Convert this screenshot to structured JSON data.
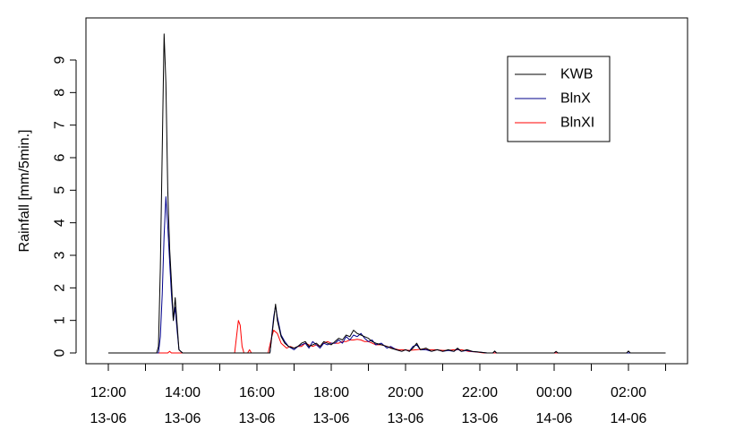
{
  "chart_data": {
    "type": "line",
    "title": "",
    "ylabel": "Rainfall [mm/5min.]",
    "xlabel": "",
    "ylim": [
      0,
      9.9
    ],
    "yticks": [
      0,
      1,
      2,
      3,
      4,
      5,
      6,
      7,
      8,
      9
    ],
    "xlim_hours": [
      11.5,
      27.0
    ],
    "xticks": [
      {
        "hour": 12,
        "time": "12:00",
        "date": "13-06"
      },
      {
        "hour": 14,
        "time": "14:00",
        "date": "13-06"
      },
      {
        "hour": 16,
        "time": "16:00",
        "date": "13-06"
      },
      {
        "hour": 18,
        "time": "18:00",
        "date": "13-06"
      },
      {
        "hour": 20,
        "time": "20:00",
        "date": "13-06"
      },
      {
        "hour": 22,
        "time": "22:00",
        "date": "13-06"
      },
      {
        "hour": 24,
        "time": "00:00",
        "date": "14-06"
      },
      {
        "hour": 26,
        "time": "02:00",
        "date": "14-06"
      }
    ],
    "minor_ticks_hours": [
      13,
      15,
      17,
      19,
      21,
      23,
      25,
      27
    ],
    "legend_position": "top-right",
    "series": [
      {
        "name": "KWB",
        "color": "#000000",
        "points": [
          [
            12.0,
            0
          ],
          [
            13.3,
            0
          ],
          [
            13.35,
            0.2
          ],
          [
            13.4,
            2.6
          ],
          [
            13.45,
            6.2
          ],
          [
            13.5,
            9.8
          ],
          [
            13.55,
            8.3
          ],
          [
            13.6,
            5.0
          ],
          [
            13.65,
            3.2
          ],
          [
            13.7,
            2.2
          ],
          [
            13.75,
            1.0
          ],
          [
            13.8,
            1.7
          ],
          [
            13.85,
            0.9
          ],
          [
            13.9,
            0.1
          ],
          [
            13.95,
            0.05
          ],
          [
            14.0,
            0
          ],
          [
            16.35,
            0
          ],
          [
            16.45,
            1.0
          ],
          [
            16.5,
            1.5
          ],
          [
            16.55,
            1.0
          ],
          [
            16.65,
            0.5
          ],
          [
            16.75,
            0.3
          ],
          [
            16.85,
            0.2
          ],
          [
            17.0,
            0.15
          ],
          [
            17.1,
            0.2
          ],
          [
            17.2,
            0.3
          ],
          [
            17.3,
            0.35
          ],
          [
            17.4,
            0.2
          ],
          [
            17.5,
            0.25
          ],
          [
            17.6,
            0.3
          ],
          [
            17.7,
            0.2
          ],
          [
            17.8,
            0.35
          ],
          [
            17.9,
            0.3
          ],
          [
            18.0,
            0.25
          ],
          [
            18.1,
            0.35
          ],
          [
            18.2,
            0.45
          ],
          [
            18.3,
            0.4
          ],
          [
            18.4,
            0.55
          ],
          [
            18.5,
            0.5
          ],
          [
            18.6,
            0.7
          ],
          [
            18.7,
            0.6
          ],
          [
            18.8,
            0.55
          ],
          [
            18.9,
            0.5
          ],
          [
            19.0,
            0.45
          ],
          [
            19.1,
            0.35
          ],
          [
            19.2,
            0.3
          ],
          [
            19.35,
            0.25
          ],
          [
            19.5,
            0.2
          ],
          [
            19.6,
            0.15
          ],
          [
            19.75,
            0.1
          ],
          [
            19.9,
            0.05
          ],
          [
            20.0,
            0.1
          ],
          [
            20.1,
            0.05
          ],
          [
            20.2,
            0.15
          ],
          [
            20.3,
            0.3
          ],
          [
            20.4,
            0.1
          ],
          [
            20.55,
            0.15
          ],
          [
            20.7,
            0.05
          ],
          [
            20.85,
            0.1
          ],
          [
            21.0,
            0.05
          ],
          [
            21.15,
            0.1
          ],
          [
            21.3,
            0.05
          ],
          [
            21.4,
            0.15
          ],
          [
            21.5,
            0.05
          ],
          [
            21.65,
            0.1
          ],
          [
            21.8,
            0.05
          ],
          [
            21.95,
            0.03
          ],
          [
            22.2,
            0
          ],
          [
            22.35,
            0
          ],
          [
            22.4,
            0.06
          ],
          [
            22.45,
            0
          ],
          [
            24.0,
            0
          ],
          [
            24.05,
            0.05
          ],
          [
            24.1,
            0
          ],
          [
            25.95,
            0
          ],
          [
            26.0,
            0.06
          ],
          [
            26.05,
            0
          ],
          [
            27.0,
            0
          ]
        ]
      },
      {
        "name": "BlnX",
        "color": "#00008b",
        "points": [
          [
            12.0,
            0
          ],
          [
            13.35,
            0
          ],
          [
            13.4,
            0.5
          ],
          [
            13.45,
            1.8
          ],
          [
            13.5,
            3.6
          ],
          [
            13.55,
            4.8
          ],
          [
            13.6,
            3.9
          ],
          [
            13.65,
            2.8
          ],
          [
            13.7,
            1.8
          ],
          [
            13.75,
            1.0
          ],
          [
            13.8,
            1.4
          ],
          [
            13.85,
            0.7
          ],
          [
            13.9,
            0.1
          ],
          [
            13.95,
            0.05
          ],
          [
            14.0,
            0
          ],
          [
            16.35,
            0
          ],
          [
            16.45,
            1.1
          ],
          [
            16.5,
            1.45
          ],
          [
            16.55,
            1.1
          ],
          [
            16.65,
            0.55
          ],
          [
            16.75,
            0.35
          ],
          [
            16.85,
            0.2
          ],
          [
            17.0,
            0.1
          ],
          [
            17.1,
            0.2
          ],
          [
            17.2,
            0.25
          ],
          [
            17.3,
            0.3
          ],
          [
            17.4,
            0.15
          ],
          [
            17.5,
            0.35
          ],
          [
            17.6,
            0.25
          ],
          [
            17.7,
            0.15
          ],
          [
            17.8,
            0.3
          ],
          [
            17.9,
            0.25
          ],
          [
            18.0,
            0.3
          ],
          [
            18.1,
            0.3
          ],
          [
            18.2,
            0.4
          ],
          [
            18.3,
            0.3
          ],
          [
            18.4,
            0.5
          ],
          [
            18.5,
            0.4
          ],
          [
            18.6,
            0.55
          ],
          [
            18.7,
            0.5
          ],
          [
            18.8,
            0.6
          ],
          [
            18.9,
            0.45
          ],
          [
            19.0,
            0.35
          ],
          [
            19.1,
            0.4
          ],
          [
            19.2,
            0.25
          ],
          [
            19.35,
            0.3
          ],
          [
            19.5,
            0.15
          ],
          [
            19.6,
            0.2
          ],
          [
            19.75,
            0.1
          ],
          [
            19.9,
            0.05
          ],
          [
            20.0,
            0.1
          ],
          [
            20.1,
            0.05
          ],
          [
            20.2,
            0.2
          ],
          [
            20.3,
            0.25
          ],
          [
            20.4,
            0.1
          ],
          [
            20.55,
            0.1
          ],
          [
            20.7,
            0.05
          ],
          [
            20.85,
            0.1
          ],
          [
            21.0,
            0.05
          ],
          [
            21.15,
            0.08
          ],
          [
            21.3,
            0.05
          ],
          [
            21.4,
            0.12
          ],
          [
            21.5,
            0.05
          ],
          [
            21.65,
            0.08
          ],
          [
            21.8,
            0.04
          ],
          [
            21.95,
            0.03
          ],
          [
            22.2,
            0
          ],
          [
            22.35,
            0
          ],
          [
            22.4,
            0.05
          ],
          [
            22.45,
            0
          ],
          [
            24.0,
            0
          ],
          [
            24.05,
            0.04
          ],
          [
            24.1,
            0
          ],
          [
            27.0,
            0
          ]
        ]
      },
      {
        "name": "BlnXI",
        "color": "#ff0000",
        "points": [
          [
            12.0,
            0
          ],
          [
            13.6,
            0
          ],
          [
            13.65,
            0.05
          ],
          [
            13.7,
            0
          ],
          [
            15.4,
            0
          ],
          [
            15.45,
            0.5
          ],
          [
            15.5,
            1.0
          ],
          [
            15.55,
            0.85
          ],
          [
            15.6,
            0.2
          ],
          [
            15.65,
            0
          ],
          [
            15.75,
            0
          ],
          [
            15.8,
            0.1
          ],
          [
            15.85,
            0
          ],
          [
            16.3,
            0
          ],
          [
            16.4,
            0.5
          ],
          [
            16.45,
            0.7
          ],
          [
            16.55,
            0.6
          ],
          [
            16.65,
            0.3
          ],
          [
            16.8,
            0.15
          ],
          [
            16.9,
            0.2
          ],
          [
            17.0,
            0.15
          ],
          [
            17.1,
            0.2
          ],
          [
            17.2,
            0.2
          ],
          [
            17.3,
            0.3
          ],
          [
            17.4,
            0.25
          ],
          [
            17.5,
            0.2
          ],
          [
            17.6,
            0.25
          ],
          [
            17.7,
            0.2
          ],
          [
            17.8,
            0.3
          ],
          [
            17.9,
            0.35
          ],
          [
            18.0,
            0.3
          ],
          [
            18.1,
            0.3
          ],
          [
            18.2,
            0.3
          ],
          [
            18.3,
            0.35
          ],
          [
            18.4,
            0.35
          ],
          [
            18.5,
            0.4
          ],
          [
            18.6,
            0.4
          ],
          [
            18.7,
            0.42
          ],
          [
            18.8,
            0.4
          ],
          [
            18.9,
            0.35
          ],
          [
            19.0,
            0.35
          ],
          [
            19.1,
            0.3
          ],
          [
            19.2,
            0.25
          ],
          [
            19.35,
            0.25
          ],
          [
            19.5,
            0.2
          ],
          [
            19.65,
            0.15
          ],
          [
            19.8,
            0.1
          ],
          [
            19.95,
            0.1
          ],
          [
            20.1,
            0.08
          ],
          [
            20.3,
            0.1
          ],
          [
            20.45,
            0.12
          ],
          [
            20.6,
            0.1
          ],
          [
            20.8,
            0.1
          ],
          [
            21.0,
            0.08
          ],
          [
            21.15,
            0.08
          ],
          [
            21.3,
            0.1
          ],
          [
            21.5,
            0.1
          ],
          [
            21.7,
            0.05
          ],
          [
            21.9,
            0.03
          ],
          [
            22.1,
            0
          ],
          [
            27.0,
            0
          ]
        ]
      }
    ]
  }
}
